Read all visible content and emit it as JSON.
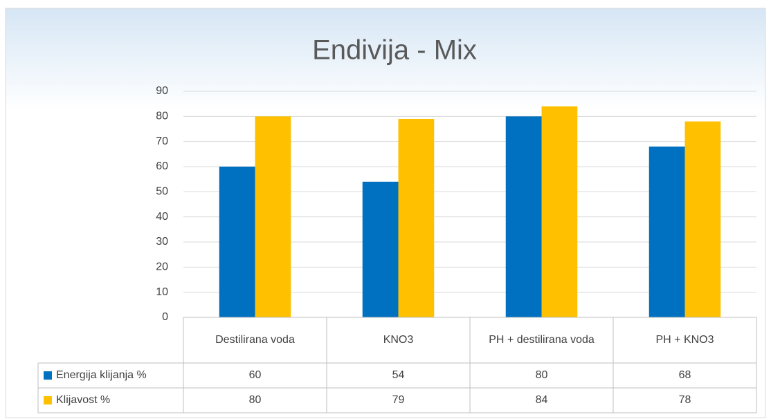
{
  "chart_data": {
    "type": "bar",
    "title": "Endivija - Mix",
    "categories": [
      "Destilirana voda",
      "KNO3",
      "PH + destilirana voda",
      "PH + KNO3"
    ],
    "series": [
      {
        "name": "Energija klijanja %",
        "color": "#0070c0",
        "values": [
          60,
          54,
          80,
          68
        ]
      },
      {
        "name": "Klijavost %",
        "color": "#ffc000",
        "values": [
          80,
          79,
          84,
          78
        ]
      }
    ],
    "ylim": [
      0,
      90
    ],
    "yticks": [
      0,
      10,
      20,
      30,
      40,
      50,
      60,
      70,
      80,
      90
    ],
    "grid": true,
    "legend": "table"
  }
}
